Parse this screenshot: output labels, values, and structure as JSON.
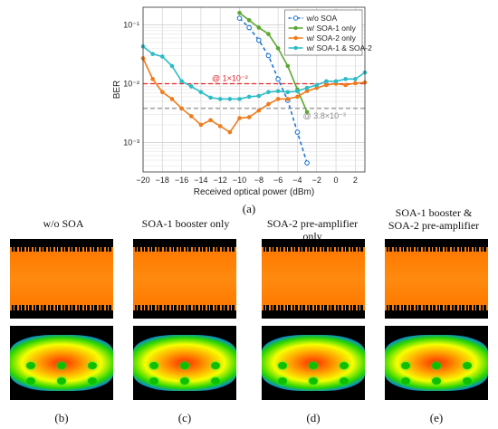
{
  "chart_data": {
    "type": "line",
    "ylabel": "BER",
    "xlabel": "Received optical power (dBm)",
    "xlim": [
      -20,
      3
    ],
    "ylim_log10": [
      -3.5,
      -0.7
    ],
    "log_y": true,
    "grid": true,
    "legend_position": "top-right",
    "x_ticks": [
      -20,
      -18,
      -16,
      -14,
      -12,
      -10,
      -8,
      -6,
      -4,
      -2,
      0,
      2
    ],
    "y_ticks": [
      {
        "value": 0.1,
        "label": "10⁻¹"
      },
      {
        "value": 0.01,
        "label": "10⁻²"
      },
      {
        "value": 0.001,
        "label": "10⁻³"
      }
    ],
    "series": [
      {
        "name": "w/o SOA",
        "color": "#1f77d4",
        "style": "dashed",
        "marker": "circle-open",
        "x": [
          -10,
          -9,
          -8,
          -7,
          -6,
          -5,
          -4,
          -3
        ],
        "y": [
          0.13,
          0.09,
          0.055,
          0.03,
          0.012,
          0.0052,
          0.0015,
          0.00045
        ]
      },
      {
        "name": "w/ SOA-1 only",
        "color": "#5aa830",
        "style": "solid",
        "marker": "circle",
        "x": [
          -10,
          -9,
          -8,
          -7,
          -6,
          -5,
          -4,
          -3
        ],
        "y": [
          0.16,
          0.12,
          0.09,
          0.07,
          0.04,
          0.02,
          0.008,
          0.0033
        ]
      },
      {
        "name": "w/ SOA-2 only",
        "color": "#f07a1a",
        "style": "solid",
        "marker": "circle",
        "x": [
          -20,
          -19,
          -18,
          -17,
          -16,
          -15,
          -14,
          -13,
          -12,
          -11,
          -10,
          -9,
          -8,
          -7,
          -6,
          -5,
          -4,
          -3,
          -2,
          -1,
          0,
          1,
          2,
          3
        ],
        "y": [
          0.027,
          0.012,
          0.0072,
          0.0055,
          0.0038,
          0.0028,
          0.002,
          0.0024,
          0.0019,
          0.0015,
          0.0026,
          0.0027,
          0.0035,
          0.0045,
          0.0055,
          0.0055,
          0.006,
          0.0075,
          0.0085,
          0.0095,
          0.01,
          0.0095,
          0.0102,
          0.0105
        ]
      },
      {
        "name": "w/ SOA-1 & SOA-2",
        "color": "#2bbcc6",
        "style": "solid",
        "marker": "circle",
        "x": [
          -20,
          -19,
          -18,
          -17,
          -16,
          -15,
          -14,
          -13,
          -12,
          -11,
          -10,
          -9,
          -8,
          -7,
          -6,
          -5,
          -4,
          -3,
          -2,
          -1,
          0,
          1,
          2,
          3
        ],
        "y": [
          0.043,
          0.032,
          0.029,
          0.02,
          0.011,
          0.009,
          0.0072,
          0.0058,
          0.0055,
          0.0055,
          0.0055,
          0.006,
          0.0062,
          0.0072,
          0.0075,
          0.0072,
          0.0075,
          0.0085,
          0.0095,
          0.011,
          0.011,
          0.012,
          0.012,
          0.0155
        ]
      }
    ],
    "reference_lines": [
      {
        "value": 0.01,
        "color": "#e8242a",
        "label": "@ 1×10⁻²"
      },
      {
        "value": 0.0038,
        "color": "#8a8a8a",
        "label": "@ 3.8×10⁻³"
      }
    ]
  },
  "captions": {
    "a": "(a)",
    "b": "(b)",
    "c": "(c)",
    "d": "(d)",
    "e": "(e)"
  },
  "panels": [
    {
      "title_lines": [
        "w/o SOA"
      ]
    },
    {
      "title_lines": [
        "SOA-1 booster only"
      ]
    },
    {
      "title_lines": [
        "SOA-2 pre-amplifier only"
      ]
    },
    {
      "title_lines": [
        "SOA-1 booster &",
        "SOA-2 pre-amplifier"
      ]
    }
  ]
}
